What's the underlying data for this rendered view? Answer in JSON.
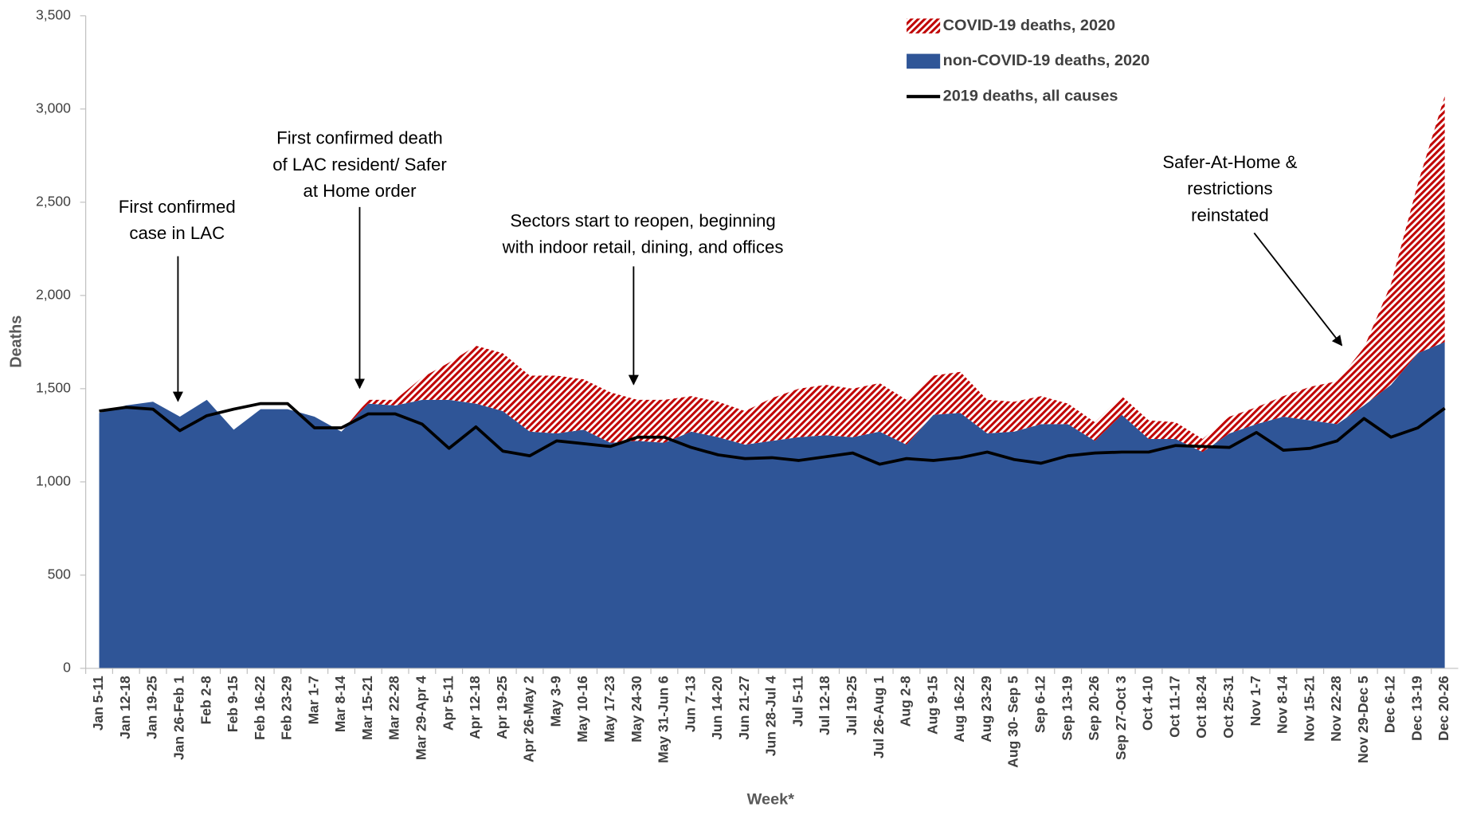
{
  "chart_data": {
    "type": "stacked-area-line",
    "x_label": "Week*",
    "y_label": "Deaths",
    "categories": [
      "Jan 5-11",
      "Jan 12-18",
      "Jan 19-25",
      "Jan 26-Feb 1",
      "Feb 2-8",
      "Feb 9-15",
      "Feb 16-22",
      "Feb 23-29",
      "Mar 1-7",
      "Mar 8-14",
      "Mar 15-21",
      "Mar 22-28",
      "Mar 29-Apr 4",
      "Apr 5-11",
      "Apr 12-18",
      "Apr 19-25",
      "Apr 26-May 2",
      "May 3-9",
      "May 10-16",
      "May 17-23",
      "May 24-30",
      "May 31-Jun 6",
      "Jun 7-13",
      "Jun 14-20",
      "Jun 21-27",
      "Jun 28-Jul 4",
      "Jul 5-11",
      "Jul 12-18",
      "Jul 19-25",
      "Jul 26-Aug 1",
      "Aug 2-8",
      "Aug 9-15",
      "Aug 16-22",
      "Aug 23-29",
      "Aug 30- Sep 5",
      "Sep 6-12",
      "Sep 13-19",
      "Sep 20-26",
      "Sep 27-Oct 3",
      "Oct 4-10",
      "Oct 11-17",
      "Oct 18-24",
      "Oct 25-31",
      "Nov 1-7",
      "Nov 8-14",
      "Nov 15-21",
      "Nov 22-28",
      "Nov 29-Dec 5",
      "Dec 6-12",
      "Dec 13-19",
      "Dec 20-26"
    ],
    "series": [
      {
        "name": "non-COVID-19 deaths, 2020",
        "kind": "area",
        "color": "#2f5597",
        "values": [
          1370,
          1410,
          1430,
          1350,
          1440,
          1280,
          1390,
          1390,
          1350,
          1270,
          1420,
          1410,
          1440,
          1440,
          1420,
          1380,
          1270,
          1260,
          1280,
          1210,
          1220,
          1210,
          1270,
          1240,
          1200,
          1220,
          1240,
          1250,
          1240,
          1270,
          1200,
          1360,
          1370,
          1260,
          1270,
          1310,
          1310,
          1220,
          1360,
          1230,
          1230,
          1160,
          1260,
          1310,
          1350,
          1330,
          1310,
          1410,
          1520,
          1690,
          1750
        ]
      },
      {
        "name": "COVID-19 deaths, 2020",
        "kind": "area",
        "color": "#c00000",
        "values": [
          0,
          0,
          0,
          0,
          0,
          0,
          0,
          0,
          0,
          0,
          20,
          30,
          120,
          200,
          310,
          310,
          300,
          310,
          270,
          270,
          220,
          230,
          190,
          190,
          180,
          230,
          260,
          270,
          260,
          260,
          240,
          210,
          220,
          180,
          160,
          150,
          110,
          100,
          100,
          100,
          90,
          70,
          90,
          90,
          110,
          180,
          230,
          310,
          540,
          910,
          1320
        ]
      },
      {
        "name": "2019 deaths, all causes",
        "kind": "line",
        "color": "#000000",
        "values": [
          1380,
          1400,
          1390,
          1275,
          1355,
          1390,
          1420,
          1420,
          1290,
          1290,
          1365,
          1365,
          1310,
          1180,
          1295,
          1165,
          1140,
          1220,
          1205,
          1190,
          1240,
          1240,
          1185,
          1145,
          1125,
          1130,
          1115,
          1135,
          1155,
          1095,
          1125,
          1115,
          1130,
          1160,
          1120,
          1100,
          1140,
          1155,
          1160,
          1160,
          1195,
          1190,
          1185,
          1265,
          1170,
          1180,
          1220,
          1340,
          1240,
          1290,
          1395
        ]
      }
    ],
    "ylim": [
      0,
      3500
    ],
    "yticks": [
      0,
      500,
      {
        "value": 1000,
        "label": "1,000"
      },
      {
        "value": 1500,
        "label": "1,500"
      },
      {
        "value": 2000,
        "label": "2,000"
      },
      {
        "value": 2500,
        "label": "2,500"
      },
      {
        "value": 3000,
        "label": "3,000"
      },
      {
        "value": 3500,
        "label": "3,500"
      }
    ],
    "legend": "top-right",
    "annotations": [
      {
        "lines": [
          "First confirmed",
          "case in LAC"
        ]
      },
      {
        "lines": [
          "First confirmed death",
          "of LAC resident/ Safer",
          "at Home order"
        ]
      },
      {
        "lines": [
          "Sectors start to reopen, beginning",
          "with indoor retail, dining, and offices"
        ]
      },
      {
        "lines": [
          "Safer-At-Home &",
          "restrictions",
          "reinstated"
        ]
      }
    ]
  }
}
